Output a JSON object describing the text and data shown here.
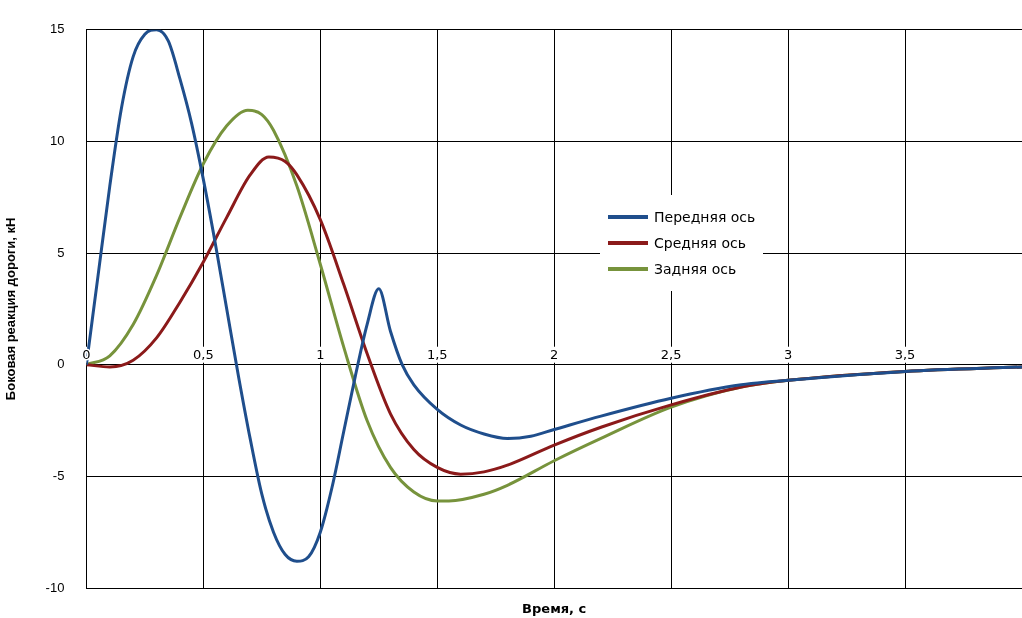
{
  "chart_data": {
    "type": "line",
    "xlabel": "Время, с",
    "ylabel": "Боковая реакция дороги, кН",
    "xlim": [
      0,
      4
    ],
    "xticks": [
      {
        "value": 0,
        "label": "0"
      },
      {
        "value": 0.5,
        "label": "0,5"
      },
      {
        "value": 1,
        "label": "1"
      },
      {
        "value": 1.5,
        "label": "1,5"
      },
      {
        "value": 2,
        "label": "2"
      },
      {
        "value": 2.5,
        "label": "2,5"
      },
      {
        "value": 3,
        "label": "3"
      },
      {
        "value": 3.5,
        "label": "3,5"
      }
    ],
    "ylim": [
      -10,
      15
    ],
    "yticks": [
      -10,
      -5,
      0,
      5,
      10,
      15
    ],
    "grid": true,
    "legend": "right",
    "marker": "none",
    "line_style": "solid",
    "series": [
      {
        "name": "Передняя  ось",
        "color": "#1f4e8c",
        "x": [
          0,
          0.05,
          0.1,
          0.15,
          0.2,
          0.25,
          0.3,
          0.35,
          0.4,
          0.45,
          0.5,
          0.55,
          0.6,
          0.65,
          0.7,
          0.75,
          0.8,
          0.85,
          0.9,
          0.95,
          1.0,
          1.05,
          1.1,
          1.15,
          1.2,
          1.25,
          1.3,
          1.35,
          1.4,
          1.5,
          1.6,
          1.7,
          1.8,
          1.9,
          2.0,
          2.2,
          2.5,
          2.8,
          3.0,
          3.5,
          4.0
        ],
        "values": [
          0,
          4,
          8,
          11.5,
          13.8,
          14.8,
          15,
          14.5,
          12.8,
          10.8,
          8.3,
          5.5,
          2.5,
          -0.5,
          -3.3,
          -5.8,
          -7.5,
          -8.5,
          -8.8,
          -8.6,
          -7.5,
          -5.5,
          -3,
          -0.5,
          1.8,
          3.4,
          1.5,
          0,
          -0.9,
          -2,
          -2.7,
          -3.1,
          -3.3,
          -3.2,
          -2.9,
          -2.3,
          -1.5,
          -0.9,
          -0.7,
          -0.3,
          -0.1
        ]
      },
      {
        "name": "Средняя ось",
        "color": "#8b1a1a",
        "x": [
          0,
          0.1,
          0.2,
          0.3,
          0.4,
          0.5,
          0.6,
          0.7,
          0.78,
          0.85,
          0.9,
          1.0,
          1.1,
          1.2,
          1.3,
          1.4,
          1.5,
          1.6,
          1.7,
          1.8,
          2.0,
          2.2,
          2.5,
          2.8,
          3.0,
          3.5,
          4.0
        ],
        "values": [
          0,
          -0.1,
          0.2,
          1.2,
          2.8,
          4.6,
          6.6,
          8.5,
          9.3,
          9.1,
          8.5,
          6.5,
          3.6,
          0.5,
          -2.2,
          -3.8,
          -4.6,
          -4.9,
          -4.8,
          -4.5,
          -3.6,
          -2.8,
          -1.8,
          -1.0,
          -0.7,
          -0.3,
          -0.1
        ]
      },
      {
        "name": "Задняя ось",
        "color": "#77933c",
        "x": [
          0,
          0.1,
          0.2,
          0.3,
          0.4,
          0.5,
          0.6,
          0.69,
          0.75,
          0.8,
          0.9,
          1.0,
          1.1,
          1.2,
          1.3,
          1.4,
          1.5,
          1.55,
          1.7,
          1.8,
          2.0,
          2.2,
          2.5,
          2.8,
          3.0,
          3.5,
          4.0
        ],
        "values": [
          0,
          0.4,
          1.8,
          4,
          6.6,
          9,
          10.7,
          11.4,
          11.2,
          10.5,
          8,
          4.5,
          0.8,
          -2.5,
          -4.6,
          -5.7,
          -6.1,
          -6.1,
          -5.8,
          -5.4,
          -4.3,
          -3.3,
          -1.9,
          -1.0,
          -0.7,
          -0.3,
          -0.1
        ]
      }
    ]
  }
}
